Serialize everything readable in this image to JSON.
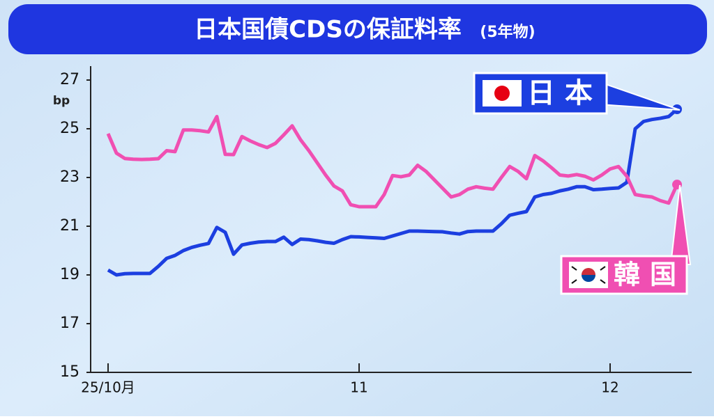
{
  "chart_data": {
    "type": "line",
    "title": "日本国債CDSの保証料率",
    "subtitle": "(5年物)",
    "y_label": "bp",
    "categories": [
      "25/10月",
      null,
      null,
      null,
      null,
      null,
      null,
      null,
      null,
      null,
      null,
      null,
      null,
      null,
      null,
      null,
      null,
      null,
      null,
      null,
      null,
      null,
      null,
      null,
      null,
      null,
      null,
      null,
      null,
      null,
      "11",
      null,
      null,
      null,
      null,
      null,
      null,
      null,
      null,
      null,
      null,
      null,
      null,
      null,
      null,
      null,
      null,
      null,
      null,
      null,
      null,
      null,
      null,
      null,
      null,
      null,
      null,
      null,
      null,
      null,
      "12",
      null,
      null,
      null,
      null,
      null,
      null,
      null,
      null
    ],
    "series": [
      {
        "name": "日本",
        "color": "#1c3fe0",
        "values": [
          19.2,
          19.0,
          19.05,
          19.06,
          19.06,
          19.06,
          19.35,
          19.68,
          19.8,
          20.0,
          20.13,
          20.22,
          20.29,
          20.95,
          20.75,
          19.85,
          20.23,
          20.3,
          20.35,
          20.37,
          20.37,
          20.55,
          20.25,
          20.47,
          20.45,
          20.4,
          20.34,
          20.3,
          20.45,
          20.57,
          20.56,
          20.54,
          20.52,
          20.5,
          20.6,
          20.7,
          20.8,
          20.8,
          20.79,
          20.78,
          20.77,
          20.72,
          20.68,
          20.78,
          20.8,
          20.8,
          20.8,
          21.1,
          21.45,
          21.53,
          21.6,
          22.2,
          22.3,
          22.35,
          22.45,
          22.52,
          22.62,
          22.62,
          22.5,
          22.52,
          22.55,
          22.57,
          22.8,
          25.0,
          25.3,
          25.38,
          25.43,
          25.5,
          25.8
        ]
      },
      {
        "name": "韓国",
        "color": "#f04fb2",
        "values": [
          24.8,
          24.0,
          23.78,
          23.75,
          23.74,
          23.75,
          23.77,
          24.1,
          24.06,
          24.95,
          24.95,
          24.92,
          24.87,
          25.5,
          23.95,
          23.94,
          24.68,
          24.5,
          24.35,
          24.23,
          24.4,
          24.75,
          25.12,
          24.55,
          24.1,
          23.6,
          23.1,
          22.65,
          22.45,
          21.88,
          21.8,
          21.8,
          21.8,
          22.3,
          23.08,
          23.03,
          23.1,
          23.5,
          23.25,
          22.9,
          22.55,
          22.2,
          22.3,
          22.52,
          22.62,
          22.56,
          22.52,
          23.0,
          23.45,
          23.25,
          22.95,
          23.9,
          23.68,
          23.4,
          23.1,
          23.06,
          23.12,
          23.05,
          22.9,
          23.1,
          23.35,
          23.45,
          23.05,
          22.3,
          22.24,
          22.2,
          22.05,
          21.95,
          22.71
        ]
      }
    ],
    "ylim": [
      15,
      27
    ],
    "yticks": [
      15,
      17,
      19,
      21,
      23,
      25,
      27
    ],
    "grid": false
  }
}
